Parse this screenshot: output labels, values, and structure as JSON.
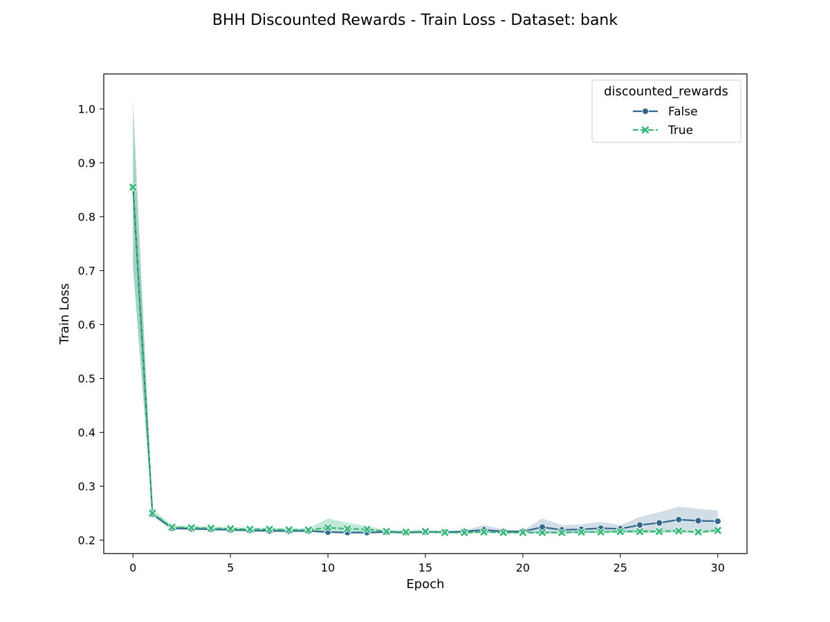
{
  "chart_data": {
    "type": "line",
    "title": "BHH Discounted Rewards - Train Loss - Dataset: bank",
    "xlabel": "Epoch",
    "ylabel": "Train Loss",
    "xlim": [
      -1.5,
      31.5
    ],
    "ylim": [
      0.175,
      1.065
    ],
    "xticks": [
      0,
      5,
      10,
      15,
      20,
      25,
      30
    ],
    "yticks": [
      0.2,
      0.3,
      0.4,
      0.5,
      0.6,
      0.7,
      0.8,
      0.9,
      1.0
    ],
    "ytick_labels": [
      "0.2",
      "0.3",
      "0.4",
      "0.5",
      "0.6",
      "0.7",
      "0.8",
      "0.9",
      "1.0"
    ],
    "grid": false,
    "legend": {
      "title": "discounted_rewards",
      "position": "top-right"
    },
    "x": [
      0,
      1,
      2,
      3,
      4,
      5,
      6,
      7,
      8,
      9,
      10,
      11,
      12,
      13,
      14,
      15,
      16,
      17,
      18,
      19,
      20,
      21,
      22,
      23,
      24,
      25,
      26,
      27,
      28,
      29,
      30
    ],
    "series": [
      {
        "name": "False",
        "color": "#31688e",
        "marker": "circle",
        "linestyle": "solid",
        "values": [
          0.855,
          0.248,
          0.222,
          0.221,
          0.22,
          0.219,
          0.218,
          0.217,
          0.217,
          0.217,
          0.215,
          0.214,
          0.214,
          0.215,
          0.214,
          0.215,
          0.215,
          0.216,
          0.219,
          0.216,
          0.216,
          0.224,
          0.219,
          0.22,
          0.222,
          0.221,
          0.228,
          0.232,
          0.238,
          0.236,
          0.235
        ],
        "ci_lower": [
          0.71,
          0.245,
          0.219,
          0.219,
          0.218,
          0.217,
          0.216,
          0.215,
          0.215,
          0.215,
          0.213,
          0.212,
          0.212,
          0.213,
          0.212,
          0.213,
          0.213,
          0.214,
          0.215,
          0.214,
          0.214,
          0.213,
          0.213,
          0.213,
          0.214,
          0.215,
          0.217,
          0.218,
          0.219,
          0.219,
          0.219
        ],
        "ci_upper": [
          1.022,
          0.252,
          0.225,
          0.224,
          0.222,
          0.221,
          0.22,
          0.219,
          0.219,
          0.219,
          0.217,
          0.216,
          0.216,
          0.217,
          0.216,
          0.217,
          0.217,
          0.218,
          0.228,
          0.22,
          0.218,
          0.24,
          0.228,
          0.229,
          0.234,
          0.228,
          0.243,
          0.252,
          0.262,
          0.258,
          0.255
        ]
      },
      {
        "name": "True",
        "color": "#35b779",
        "marker": "x",
        "linestyle": "dashed",
        "values": [
          0.855,
          0.25,
          0.224,
          0.223,
          0.222,
          0.221,
          0.22,
          0.22,
          0.219,
          0.219,
          0.223,
          0.221,
          0.22,
          0.216,
          0.215,
          0.216,
          0.214,
          0.214,
          0.215,
          0.214,
          0.214,
          0.214,
          0.214,
          0.215,
          0.215,
          0.216,
          0.216,
          0.216,
          0.217,
          0.215,
          0.218
        ],
        "ci_lower": [
          0.705,
          0.247,
          0.221,
          0.22,
          0.219,
          0.218,
          0.217,
          0.217,
          0.216,
          0.216,
          0.215,
          0.214,
          0.214,
          0.213,
          0.213,
          0.213,
          0.212,
          0.212,
          0.213,
          0.212,
          0.212,
          0.212,
          0.212,
          0.213,
          0.213,
          0.213,
          0.213,
          0.213,
          0.214,
          0.212,
          0.215
        ],
        "ci_upper": [
          1.0,
          0.258,
          0.227,
          0.226,
          0.225,
          0.224,
          0.223,
          0.223,
          0.222,
          0.222,
          0.24,
          0.232,
          0.226,
          0.219,
          0.218,
          0.219,
          0.217,
          0.217,
          0.218,
          0.217,
          0.216,
          0.216,
          0.216,
          0.217,
          0.217,
          0.219,
          0.219,
          0.219,
          0.22,
          0.218,
          0.221
        ]
      }
    ]
  }
}
